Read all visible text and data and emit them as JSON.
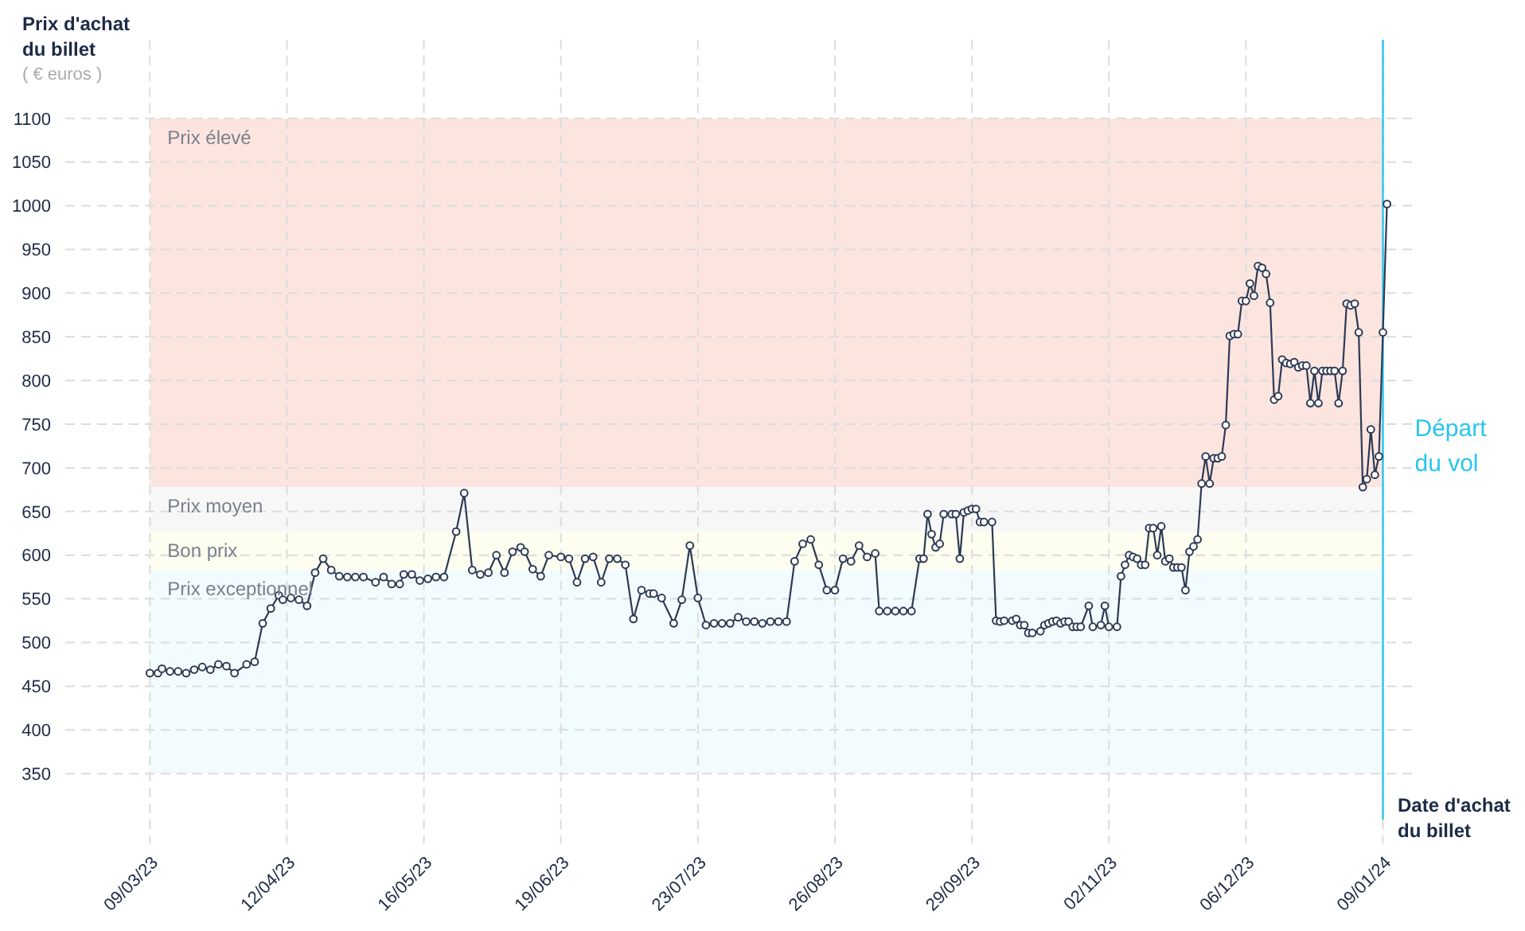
{
  "chart_data": {
    "type": "line",
    "ylabel": "Prix d'achat du billet",
    "xlabel": "Date d'achat du billet",
    "annotations": [
      "( € euros )"
    ],
    "xlim": [
      "2023-02-16",
      "2024-01-17"
    ],
    "ylim": [
      270,
      1190
    ],
    "xticks": [
      {
        "value": "2023-03-09",
        "label": "09/03/23"
      },
      {
        "value": "2023-04-12",
        "label": "12/04/23"
      },
      {
        "value": "2023-05-16",
        "label": "16/05/23"
      },
      {
        "value": "2023-06-19",
        "label": "19/06/23"
      },
      {
        "value": "2023-07-23",
        "label": "23/07/23"
      },
      {
        "value": "2023-08-26",
        "label": "26/08/23"
      },
      {
        "value": "2023-09-29",
        "label": "29/09/23"
      },
      {
        "value": "2023-11-02",
        "label": "02/11/23"
      },
      {
        "value": "2023-12-06",
        "label": "06/12/23"
      },
      {
        "value": "2024-01-09",
        "label": "09/01/24"
      }
    ],
    "yticks": [
      350,
      400,
      450,
      500,
      550,
      600,
      650,
      700,
      750,
      800,
      850,
      900,
      950,
      1000,
      1050,
      1100
    ],
    "grid": true,
    "marker": "circle",
    "line_style": "solid",
    "bands": [
      {
        "axis": "y",
        "from": 678,
        "to": 1100,
        "label": "Prix élevé",
        "color": "#fde5df"
      },
      {
        "axis": "y",
        "from": 627,
        "to": 678,
        "label": "Prix moyen",
        "color": "#f7f7f8"
      },
      {
        "axis": "y",
        "from": 583,
        "to": 627,
        "label": "Bon prix",
        "color": "#fdfdf0"
      },
      {
        "axis": "y",
        "from": 350,
        "to": 583,
        "label": "Prix exceptionnel",
        "color": "#f2fcfe"
      }
    ],
    "ref_lines": [
      {
        "axis": "x",
        "value": "2024-01-09",
        "label": "Départ du vol",
        "color": "#29c5ee"
      }
    ],
    "series": [
      {
        "color": "#2d3a55",
        "x": [
          "2023-03-09",
          "2023-03-11",
          "2023-03-12",
          "2023-03-14",
          "2023-03-16",
          "2023-03-18",
          "2023-03-20",
          "2023-03-22",
          "2023-03-24",
          "2023-03-26",
          "2023-03-28",
          "2023-03-30",
          "2023-04-02",
          "2023-04-04",
          "2023-04-06",
          "2023-04-08",
          "2023-04-10",
          "2023-04-11",
          "2023-04-13",
          "2023-04-15",
          "2023-04-17",
          "2023-04-19",
          "2023-04-21",
          "2023-04-23",
          "2023-04-25",
          "2023-04-27",
          "2023-04-29",
          "2023-05-01",
          "2023-05-04",
          "2023-05-06",
          "2023-05-08",
          "2023-05-10",
          "2023-05-11",
          "2023-05-13",
          "2023-05-15",
          "2023-05-17",
          "2023-05-19",
          "2023-05-21",
          "2023-05-24",
          "2023-05-26",
          "2023-05-28",
          "2023-05-30",
          "2023-06-01",
          "2023-06-03",
          "2023-06-05",
          "2023-06-07",
          "2023-06-09",
          "2023-06-10",
          "2023-06-12",
          "2023-06-14",
          "2023-06-16",
          "2023-06-19",
          "2023-06-21",
          "2023-06-23",
          "2023-06-25",
          "2023-06-27",
          "2023-06-29",
          "2023-07-01",
          "2023-07-03",
          "2023-07-05",
          "2023-07-07",
          "2023-07-09",
          "2023-07-11",
          "2023-07-12",
          "2023-07-14",
          "2023-07-17",
          "2023-07-19",
          "2023-07-21",
          "2023-07-23",
          "2023-07-25",
          "2023-07-27",
          "2023-07-29",
          "2023-07-31",
          "2023-08-02",
          "2023-08-04",
          "2023-08-06",
          "2023-08-08",
          "2023-08-10",
          "2023-08-12",
          "2023-08-14",
          "2023-08-16",
          "2023-08-18",
          "2023-08-20",
          "2023-08-22",
          "2023-08-24",
          "2023-08-26",
          "2023-08-28",
          "2023-08-30",
          "2023-09-01",
          "2023-09-03",
          "2023-09-05",
          "2023-09-06",
          "2023-09-08",
          "2023-09-10",
          "2023-09-12",
          "2023-09-14",
          "2023-09-16",
          "2023-09-17",
          "2023-09-18",
          "2023-09-19",
          "2023-09-20",
          "2023-09-21",
          "2023-09-22",
          "2023-09-24",
          "2023-09-25",
          "2023-09-26",
          "2023-09-27",
          "2023-09-28",
          "2023-09-29",
          "2023-09-30",
          "2023-10-01",
          "2023-10-02",
          "2023-10-04",
          "2023-10-05",
          "2023-10-06",
          "2023-10-07",
          "2023-10-09",
          "2023-10-10",
          "2023-10-11",
          "2023-10-12",
          "2023-10-13",
          "2023-10-14",
          "2023-10-16",
          "2023-10-17",
          "2023-10-18",
          "2023-10-19",
          "2023-10-20",
          "2023-10-21",
          "2023-10-22",
          "2023-10-23",
          "2023-10-24",
          "2023-10-25",
          "2023-10-26",
          "2023-10-28",
          "2023-10-29",
          "2023-10-31",
          "2023-11-01",
          "2023-11-02",
          "2023-11-04",
          "2023-11-05",
          "2023-11-06",
          "2023-11-07",
          "2023-11-08",
          "2023-11-09",
          "2023-11-10",
          "2023-11-11",
          "2023-11-12",
          "2023-11-13",
          "2023-11-14",
          "2023-11-15",
          "2023-11-16",
          "2023-11-17",
          "2023-11-18",
          "2023-11-19",
          "2023-11-20",
          "2023-11-21",
          "2023-11-22",
          "2023-11-23",
          "2023-11-24",
          "2023-11-25",
          "2023-11-26",
          "2023-11-27",
          "2023-11-28",
          "2023-11-29",
          "2023-11-30",
          "2023-12-01",
          "2023-12-02",
          "2023-12-03",
          "2023-12-04",
          "2023-12-05",
          "2023-12-06",
          "2023-12-07",
          "2023-12-08",
          "2023-12-09",
          "2023-12-10",
          "2023-12-11",
          "2023-12-12",
          "2023-12-13",
          "2023-12-14",
          "2023-12-15",
          "2023-12-16",
          "2023-12-17",
          "2023-12-18",
          "2023-12-19",
          "2023-12-20",
          "2023-12-21",
          "2023-12-22",
          "2023-12-23",
          "2023-12-24",
          "2023-12-25",
          "2023-12-26",
          "2023-12-27",
          "2023-12-28",
          "2023-12-29",
          "2023-12-30",
          "2023-12-31",
          "2024-01-01",
          "2024-01-02",
          "2024-01-03",
          "2024-01-04",
          "2024-01-05",
          "2024-01-06",
          "2024-01-07",
          "2024-01-08",
          "2024-01-09",
          "2024-01-10"
        ],
        "values": [
          465,
          465,
          470,
          467,
          467,
          465,
          469,
          472,
          469,
          475,
          473,
          465,
          475,
          478,
          522,
          539,
          554,
          549,
          551,
          549,
          542,
          580,
          596,
          583,
          576,
          575,
          575,
          575,
          569,
          575,
          567,
          567,
          578,
          578,
          571,
          573,
          575,
          575,
          627,
          671,
          583,
          578,
          580,
          600,
          580,
          604,
          609,
          604,
          584,
          576,
          600,
          598,
          596,
          569,
          596,
          598,
          569,
          596,
          596,
          589,
          527,
          560,
          556,
          556,
          551,
          522,
          549,
          611,
          551,
          520,
          522,
          522,
          522,
          529,
          524,
          524,
          522,
          524,
          524,
          524,
          593,
          613,
          618,
          589,
          560,
          560,
          596,
          593,
          611,
          598,
          602,
          536,
          536,
          536,
          536,
          536,
          596,
          596,
          647,
          624,
          609,
          613,
          647,
          647,
          647,
          596,
          649,
          651,
          653,
          653,
          638,
          638,
          638,
          525,
          524,
          525,
          525,
          527,
          520,
          520,
          511,
          511,
          513,
          520,
          522,
          524,
          525,
          522,
          524,
          524,
          518,
          518,
          518,
          542,
          518,
          520,
          542,
          518,
          518,
          576,
          589,
          600,
          598,
          596,
          589,
          589,
          631,
          631,
          600,
          633,
          593,
          596,
          586,
          586,
          586,
          560,
          604,
          610,
          618,
          682,
          713,
          682,
          711,
          711,
          713,
          749,
          851,
          853,
          853,
          891,
          891,
          911,
          897,
          931,
          929,
          922,
          889,
          778,
          782,
          824,
          820,
          819,
          821,
          815,
          817,
          817,
          774,
          811,
          774,
          811,
          811,
          811,
          811,
          774,
          811,
          888,
          886,
          888,
          855,
          678,
          687,
          744,
          692,
          713,
          855,
          1002
        ]
      }
    ]
  }
}
